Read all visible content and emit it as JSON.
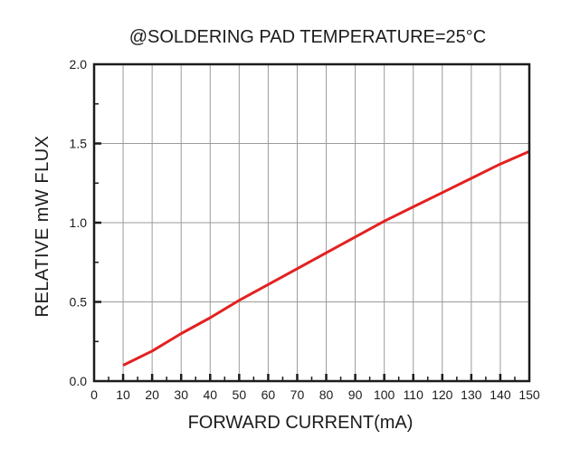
{
  "window": {
    "background": "#ffffff"
  },
  "colors": {
    "ink": "#1c1c1c",
    "frame": "#1c1c1c",
    "grid": "#9b9b9b",
    "curve_red": "#e32120",
    "background": "#ffffff"
  },
  "chart_data": {
    "type": "line",
    "title": "@SOLDERING PAD TEMPERATURE=25°C",
    "xlabel": "FORWARD CURRENT(mA)",
    "ylabel": "RELATIVE mW FLUX",
    "xlim": [
      0,
      150
    ],
    "ylim": [
      0.0,
      2.0
    ],
    "grid": true,
    "legend_position": "none",
    "x_ticks": [
      0,
      10,
      20,
      30,
      40,
      50,
      60,
      70,
      80,
      90,
      100,
      110,
      120,
      130,
      140,
      150
    ],
    "x_tick_labels": [
      "0",
      "10",
      "20",
      "30",
      "40",
      "50",
      "60",
      "70",
      "80",
      "90",
      "100",
      "110",
      "120",
      "130",
      "140",
      "150"
    ],
    "x_minor_tick_step": 5,
    "y_ticks": [
      0,
      0.5,
      1.0,
      1.5,
      2.0
    ],
    "y_tick_labels": [
      "0.0",
      "0.5",
      "1.0",
      "1.5",
      "2.0"
    ],
    "y_minor_tick_step": 0.25,
    "series": [
      {
        "name": "relative-mw-flux-vs-forward-current",
        "color": "#e32120",
        "x": [
          10,
          20,
          30,
          40,
          50,
          60,
          70,
          80,
          90,
          100,
          110,
          120,
          130,
          140,
          150
        ],
        "y": [
          0.1,
          0.19,
          0.3,
          0.4,
          0.51,
          0.61,
          0.71,
          0.81,
          0.91,
          1.01,
          1.1,
          1.19,
          1.28,
          1.37,
          1.45
        ]
      }
    ]
  }
}
